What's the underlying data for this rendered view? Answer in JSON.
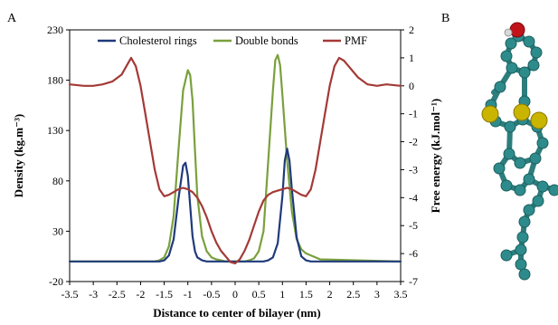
{
  "panels": {
    "a": "A",
    "b": "B"
  },
  "chart_data": {
    "type": "line",
    "xlabel": "Distance to center of bilayer (nm)",
    "ylabel_left": "Density (kg.m⁻³)",
    "ylabel_right": "Free energy (kJ.mol⁻¹)",
    "xlim": [
      -3.5,
      3.5
    ],
    "ylim_left": [
      -20,
      230
    ],
    "ylim_right": [
      -7,
      2
    ],
    "x_ticks": [
      "-3.5",
      "-3",
      "-2.5",
      "-2",
      "-1.5",
      "-1",
      "-0.5",
      "0",
      "0.5",
      "1",
      "1.5",
      "2",
      "2.5",
      "3",
      "3.5"
    ],
    "y_left_ticks": [
      "-20",
      "30",
      "80",
      "130",
      "180",
      "230"
    ],
    "y_right_ticks": [
      "-7",
      "-6",
      "-5",
      "-4",
      "-3",
      "-2",
      "-1",
      "0",
      "1",
      "2"
    ],
    "legend_position": "top",
    "series": [
      {
        "name": "Cholesterol rings",
        "axis": "left",
        "color": "#1f3a7a",
        "x": [
          -3.5,
          -1.6,
          -1.5,
          -1.4,
          -1.3,
          -1.2,
          -1.1,
          -1.05,
          -1.0,
          -0.95,
          -0.9,
          -0.85,
          -0.8,
          -0.7,
          -0.6,
          -0.5,
          0.5,
          0.6,
          0.7,
          0.8,
          0.9,
          1.0,
          1.05,
          1.1,
          1.15,
          1.2,
          1.3,
          1.4,
          1.5,
          1.6,
          3.5
        ],
        "y": [
          0,
          0,
          1,
          6,
          22,
          62,
          95,
          98,
          85,
          55,
          25,
          10,
          4,
          1,
          0,
          0,
          0,
          0,
          1,
          4,
          18,
          65,
          100,
          112,
          100,
          72,
          24,
          5,
          1,
          0,
          0
        ]
      },
      {
        "name": "Double bonds",
        "axis": "left",
        "color": "#7aa03c",
        "x": [
          -3.5,
          -1.7,
          -1.6,
          -1.5,
          -1.4,
          -1.3,
          -1.2,
          -1.1,
          -1.0,
          -0.95,
          -0.9,
          -0.85,
          -0.8,
          -0.7,
          -0.6,
          -0.5,
          -0.4,
          -0.3,
          -0.2,
          -0.1,
          0,
          0.1,
          0.2,
          0.3,
          0.4,
          0.5,
          0.6,
          0.7,
          0.8,
          0.85,
          0.9,
          0.95,
          1.0,
          1.1,
          1.2,
          1.3,
          1.4,
          1.5,
          1.6,
          1.8,
          3.5
        ],
        "y": [
          0,
          0,
          1,
          4,
          15,
          45,
          110,
          170,
          190,
          185,
          160,
          110,
          65,
          25,
          10,
          4,
          2,
          1,
          0,
          0,
          0,
          0,
          0,
          1,
          3,
          10,
          30,
          100,
          170,
          200,
          205,
          195,
          165,
          100,
          50,
          22,
          12,
          8,
          6,
          2,
          0
        ]
      },
      {
        "name": "PMF",
        "axis": "right",
        "color": "#a33a36",
        "x": [
          -3.5,
          -3.2,
          -3.0,
          -2.8,
          -2.6,
          -2.4,
          -2.3,
          -2.2,
          -2.1,
          -2.0,
          -1.9,
          -1.8,
          -1.7,
          -1.6,
          -1.5,
          -1.4,
          -1.3,
          -1.2,
          -1.1,
          -1.0,
          -0.9,
          -0.8,
          -0.7,
          -0.6,
          -0.5,
          -0.4,
          -0.3,
          -0.2,
          -0.1,
          0,
          0.1,
          0.2,
          0.3,
          0.4,
          0.5,
          0.6,
          0.7,
          0.8,
          0.9,
          1.0,
          1.1,
          1.2,
          1.3,
          1.4,
          1.5,
          1.6,
          1.7,
          1.8,
          1.9,
          2.0,
          2.1,
          2.2,
          2.3,
          2.4,
          2.6,
          2.8,
          3.0,
          3.2,
          3.5
        ],
        "y": [
          0.05,
          0.0,
          0.0,
          0.05,
          0.15,
          0.4,
          0.7,
          1.0,
          0.7,
          0.0,
          -1.0,
          -2.0,
          -3.0,
          -3.7,
          -3.95,
          -3.9,
          -3.8,
          -3.7,
          -3.65,
          -3.7,
          -3.8,
          -4.0,
          -4.3,
          -4.7,
          -5.2,
          -5.6,
          -5.9,
          -6.1,
          -6.3,
          -6.35,
          -6.2,
          -5.9,
          -5.5,
          -5.0,
          -4.5,
          -4.1,
          -3.9,
          -3.8,
          -3.75,
          -3.7,
          -3.65,
          -3.7,
          -3.8,
          -3.9,
          -3.95,
          -3.7,
          -3.0,
          -2.0,
          -1.0,
          0.0,
          0.7,
          1.0,
          0.9,
          0.7,
          0.3,
          0.05,
          0.0,
          0.05,
          0.0
        ]
      }
    ]
  }
}
